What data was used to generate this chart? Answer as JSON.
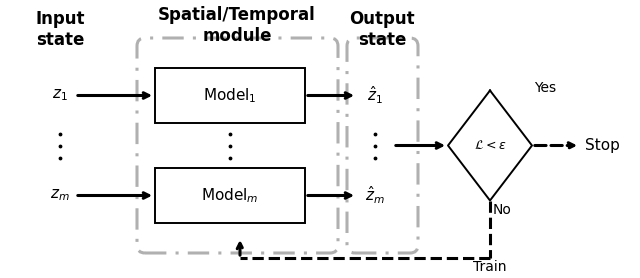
{
  "fig_width": 6.4,
  "fig_height": 2.78,
  "dpi": 100,
  "background_color": "#ffffff",
  "text_color": "#000000",
  "gray_color": "#b0b0b0",
  "labels": {
    "input_state": "Input\nstate",
    "spatial_temporal": "Spatial/Temporal\nmodule",
    "output_state": "Output\nstate",
    "model1": "$\\mathrm{Model}_1$",
    "modelm": "$\\mathrm{Model}_m$",
    "z1": "$z_1$",
    "zm": "$z_m$",
    "zhat1": "$\\hat{z}_1$",
    "zhatm": "$\\hat{z}_m$",
    "loss": "$\\mathcal{L} < \\epsilon$",
    "yes": "Yes",
    "no": "No",
    "stop": "Stop",
    "train": "Train"
  },
  "lw_thick": 2.2,
  "lw_thin": 1.4,
  "lw_gray": 2.2,
  "fs_header": 12,
  "fs_label": 11,
  "fs_small": 10,
  "fs_loss": 9
}
